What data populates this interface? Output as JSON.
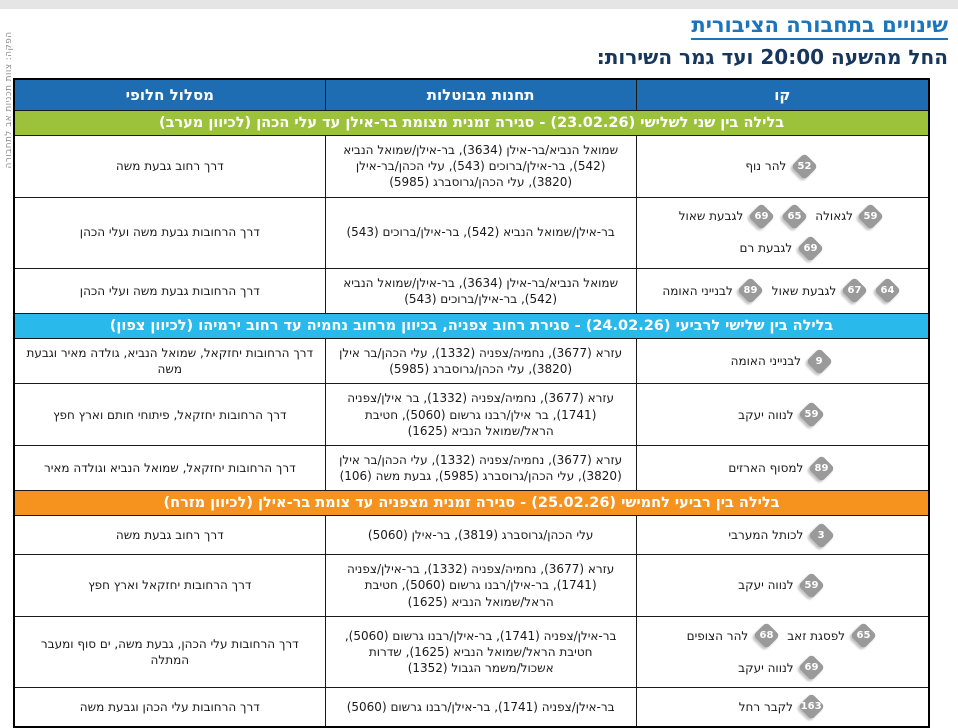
{
  "page": {
    "title": "שינויים בתחבורה הציבורית",
    "subtitle": "החל מהשעה 20:00  ועד גמר השירות:",
    "credit": "הפקה: צוות תכניות אב לתחבורה"
  },
  "colors": {
    "header_bg": "#1e6db3",
    "title_blue": "#1b75bc",
    "subtitle_navy": "#17365d",
    "badge_gray": "#9a9a9a",
    "section_green": "#9cc23c",
    "section_cyan": "#29b9ea",
    "section_orange": "#f6921e"
  },
  "table": {
    "headers": {
      "line": "קו",
      "cancelled": "תחנות מבוטלות",
      "alternative": "מסלול חלופי"
    },
    "sections": [
      {
        "color": "#9cc23c",
        "title": "בלילה בין שני לשלישי (23.02.26) - סגירה זמנית מצומת בר-אילן עד עלי הכהן (לכיוון מערב)",
        "rows": [
          {
            "line_groups": [
              {
                "badges": [
                  "52"
                ],
                "label": "להר נוף"
              }
            ],
            "cancelled": "שמואל הנביא/בר-אילן (3634), בר-אילן/שמואל הנביא (542), בר-אילן/ברוכים (543), עלי הכהן/בר-אילן (3820), עלי הכהן/גרוסברג (5985)",
            "alternative": "דרך רחוב גבעת משה"
          },
          {
            "line_groups": [
              {
                "badges": [
                  "59"
                ],
                "label": "לגאולה"
              },
              {
                "badges": [
                  "65",
                  "69"
                ],
                "label": "לגבעת שאול"
              },
              {
                "badges": [
                  "69"
                ],
                "label": "לגבעת רם"
              }
            ],
            "cancelled": "בר-אילן/שמואל הנביא (542), בר-אילן/ברוכים (543)",
            "alternative": "דרך הרחובות גבעת משה ועלי הכהן"
          },
          {
            "line_groups": [
              {
                "badges": [
                  "64",
                  "67"
                ],
                "label": "לגבעת שאול"
              },
              {
                "badges": [
                  "89"
                ],
                "label": "לבנייני האומה"
              }
            ],
            "cancelled": "שמואל הנביא/בר-אילן (3634), בר-אילן/שמואל הנביא (542), בר-אילן/ברוכים (543)",
            "alternative": "דרך הרחובות גבעת משה ועלי הכהן"
          }
        ]
      },
      {
        "color": "#29b9ea",
        "title": "בלילה בין שלישי לרביעי (24.02.26) - סגירת רחוב צפניה, בכיוון מרחוב נחמיה עד רחוב ירמיהו (לכיוון צפון)",
        "rows": [
          {
            "line_groups": [
              {
                "badges": [
                  "9"
                ],
                "label": "לבנייני האומה"
              }
            ],
            "cancelled": "עזרא (3677), נחמיה/צפניה (1332), עלי הכהן/בר אילן (3820), עלי הכהן/גרוסברג (5985)",
            "alternative": "דרך הרחובות יחזקאל, שמואל הנביא, גולדה מאיר וגבעת משה"
          },
          {
            "line_groups": [
              {
                "badges": [
                  "59"
                ],
                "label": "לנווה יעקב"
              }
            ],
            "cancelled": "עזרא (3677), נחמיה/צפניה (1332), בר אילן/צפניה (1741), בר אילן/רבנו גרשום (5060), חטיבת הראל/שמואל הנביא (1625)",
            "alternative": "דרך הרחובות יחזקאל, פיתוחי חותם וארץ חפץ"
          },
          {
            "line_groups": [
              {
                "badges": [
                  "89"
                ],
                "label": "למסוף הארזים"
              }
            ],
            "cancelled": "עזרא (3677), נחמיה/צפניה (1332), עלי הכהן/בר אילן (3820), עלי הכהן/גרוסברג (5985), גבעת משה (106)",
            "alternative": "דרך הרחובות יחזקאל, שמואל הנביא וגולדה מאיר"
          }
        ]
      },
      {
        "color": "#f6921e",
        "title": "בלילה בין רביעי לחמישי (25.02.26) - סגירה זמנית מצפניה עד צומת בר-אילן (לכיוון מזרח)",
        "rows": [
          {
            "line_groups": [
              {
                "badges": [
                  "3"
                ],
                "label": "לכותל המערבי"
              }
            ],
            "cancelled": "עלי הכהן/גרוסברג (3819), בר-אילן (5060)",
            "alternative": "דרך רחוב גבעת משה"
          },
          {
            "line_groups": [
              {
                "badges": [
                  "59"
                ],
                "label": "לנווה יעקב"
              }
            ],
            "cancelled": "עזרא (3677), נחמיה/צפניה (1332), בר-אילן/צפניה (1741), בר-אילן/רבנו גרשום (5060), חטיבת הראל/שמואל הנביא (1625)",
            "alternative": "דרך הרחובות יחזקאל וארץ חפץ"
          },
          {
            "line_groups": [
              {
                "badges": [
                  "65"
                ],
                "label": "לפסגת זאב"
              },
              {
                "badges": [
                  "68"
                ],
                "label": "להר הצופים"
              },
              {
                "badges": [
                  "69"
                ],
                "label": "לנווה יעקב"
              }
            ],
            "cancelled": "בר-אילן/צפניה (1741), בר-אילן/רבנו גרשום (5060), חטיבת הראל/שמואל הנביא (1625), שדרות אשכול/משמר הגבול (1352)",
            "alternative": "דרך הרחובות עלי הכהן, גבעת משה, ים סוף ומעבר המתלה"
          },
          {
            "line_groups": [
              {
                "badges": [
                  "163"
                ],
                "label": "לקבר רחל"
              }
            ],
            "cancelled": "בר-אילן/צפניה (1741), בר-אילן/רבנו גרשום (5060)",
            "alternative": "דרך הרחובות עלי הכהן וגבעת משה"
          }
        ]
      }
    ]
  }
}
